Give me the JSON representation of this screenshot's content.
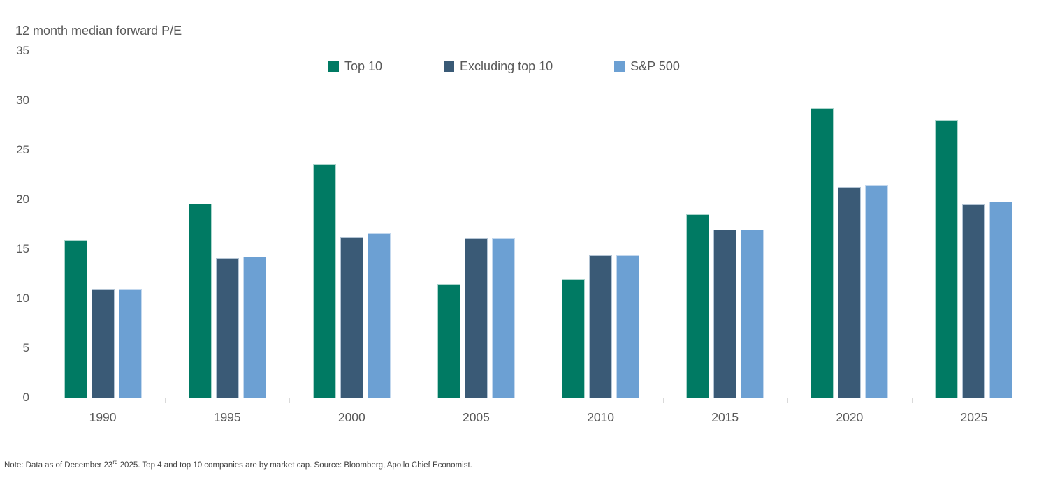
{
  "title": "12 month median forward P/E",
  "footnote": {
    "prefix": "Note: Data as of December 23",
    "superscript": "rd",
    "suffix": " 2025. Top 4 and top 10 companies are by market cap. Source: Bloomberg, Apollo Chief Economist."
  },
  "colors": {
    "top10": "#007A63",
    "top10_border": "#ABD5CC",
    "excluding_top10": "#3A5A76",
    "excluding_top10_border": "#B3C4D4",
    "sp500": "#6CA0D3",
    "sp500_border": "#C3D8EE",
    "axis_line": "#D9D9D9",
    "text_gray": "#595959"
  },
  "chart_data": {
    "type": "bar",
    "title": "12 month median forward P/E",
    "categories": [
      "1990",
      "1995",
      "2000",
      "2005",
      "2010",
      "2015",
      "2020",
      "2025"
    ],
    "series": [
      {
        "name": "Top 10",
        "color": "#007A63",
        "border": "#ABD5CC",
        "values": [
          15.9,
          19.6,
          23.6,
          11.5,
          12.0,
          18.5,
          29.2,
          28.0
        ]
      },
      {
        "name": "Excluding top 10",
        "color": "#3A5A76",
        "border": "#B3C4D4",
        "values": [
          11.0,
          14.1,
          16.2,
          16.1,
          14.4,
          17.0,
          21.3,
          19.5
        ]
      },
      {
        "name": "S&P 500",
        "color": "#6CA0D3",
        "border": "#C3D8EE",
        "values": [
          11.0,
          14.2,
          16.6,
          16.1,
          14.4,
          17.0,
          21.5,
          19.8
        ]
      }
    ],
    "ylabel": "12 month median forward P/E",
    "xlabel": "",
    "ylim": [
      0,
      35
    ],
    "yticks": [
      0,
      5,
      10,
      15,
      20,
      25,
      30,
      35
    ],
    "grid": false,
    "legend_position": "top-center"
  }
}
